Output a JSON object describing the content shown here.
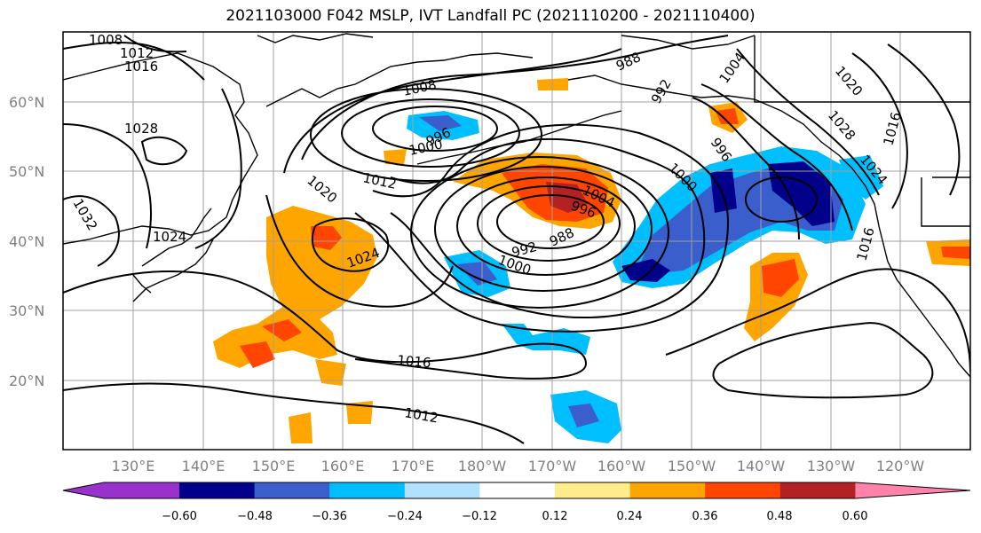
{
  "title": "2021103000 F042 MSLP, IVT Landfall PC (2021110200 - 2021110400)",
  "map": {
    "lat_labels": [
      "60°N",
      "50°N",
      "40°N",
      "30°N",
      "20°N"
    ],
    "lon_labels": [
      "130°E",
      "140°E",
      "150°E",
      "160°E",
      "170°E",
      "180°W",
      "170°W",
      "160°W",
      "150°W",
      "140°W",
      "130°W",
      "120°W"
    ],
    "isobar_labels": [
      "1008",
      "1012",
      "1016",
      "1028",
      "1032",
      "1024",
      "1020",
      "1012",
      "1008",
      "1000",
      "996",
      "1004",
      "996",
      "992",
      "988",
      "1000",
      "1024",
      "1016",
      "1012",
      "988",
      "992",
      "1004",
      "996",
      "1000",
      "1020",
      "1016",
      "1028",
      "1024",
      "1016"
    ],
    "colors": {
      "land": "#000000",
      "grid": "#a0a0a0",
      "isobar": "#000000"
    }
  },
  "colorbar": {
    "ticks": [
      "−0.60",
      "−0.48",
      "−0.36",
      "−0.24",
      "−0.12",
      "0.12",
      "0.24",
      "0.36",
      "0.48",
      "0.60"
    ],
    "colors": [
      "#9932cc",
      "#00008b",
      "#3a5fcd",
      "#00bfff",
      "#b0e2ff",
      "#ffffff",
      "#ffec8b",
      "#ffa500",
      "#ff4500",
      "#b22222",
      "#ff82ab"
    ]
  }
}
